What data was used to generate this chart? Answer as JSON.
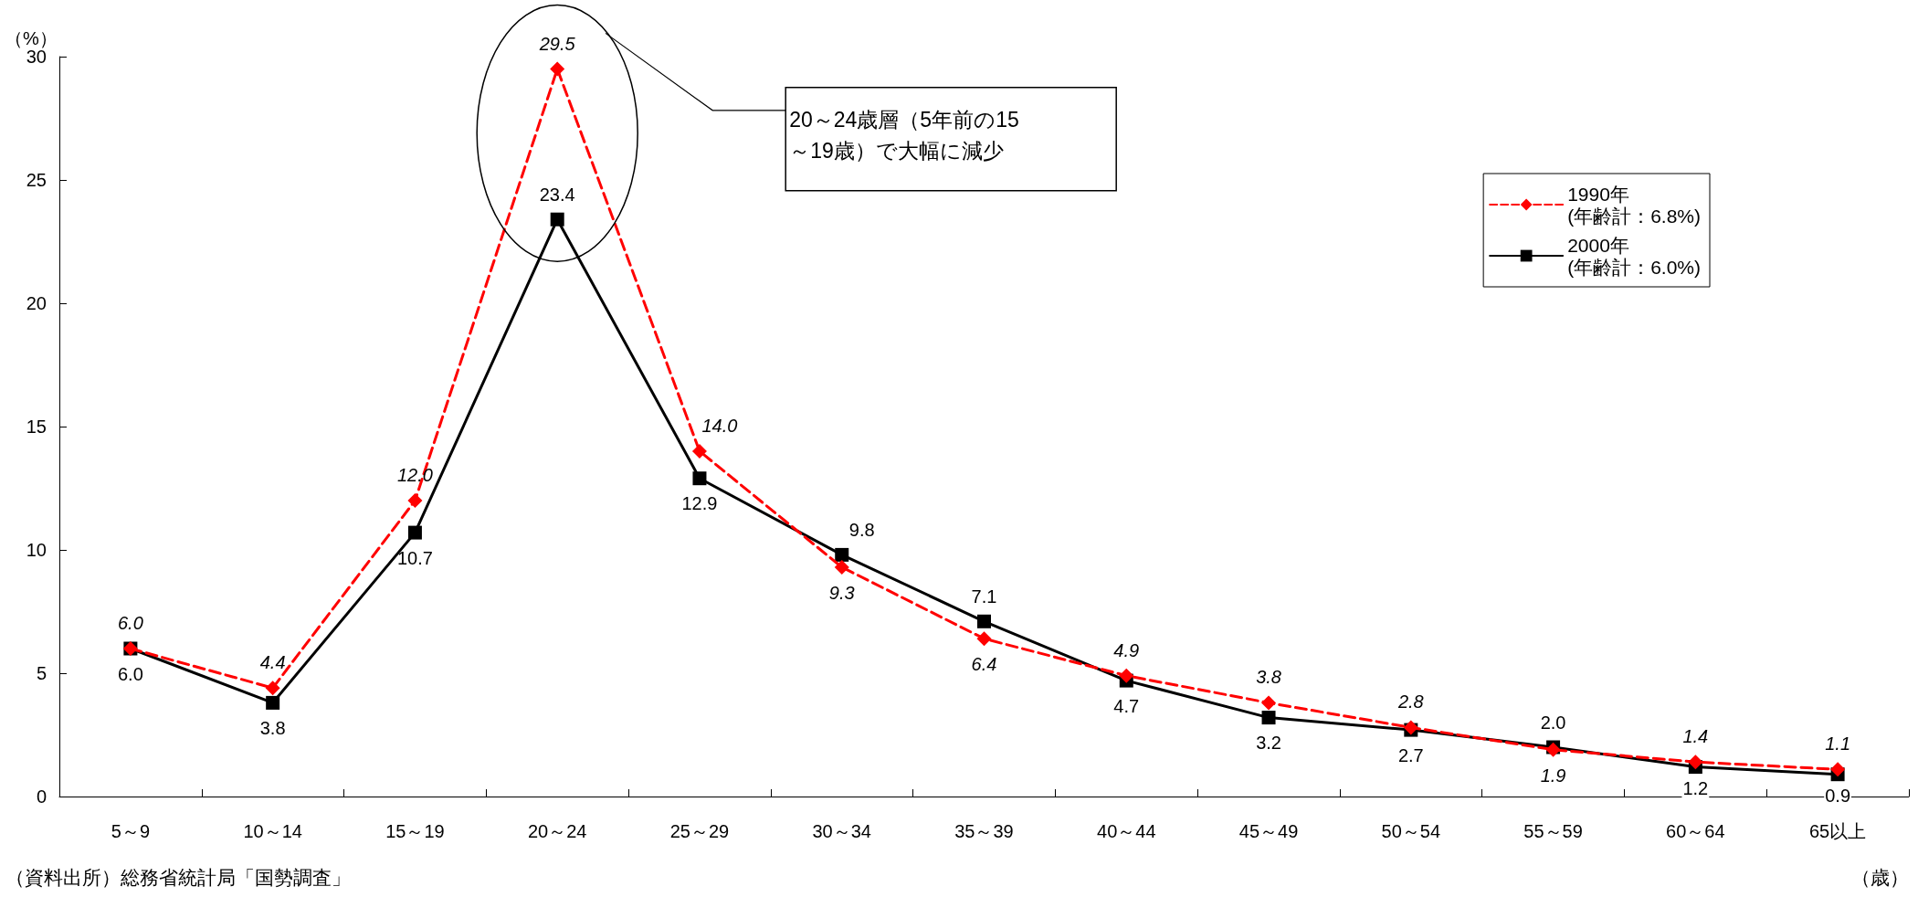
{
  "chart_data": {
    "type": "line",
    "categories": [
      "5～9",
      "10～14",
      "15～19",
      "20～24",
      "25～29",
      "30～34",
      "35～39",
      "40～44",
      "45～49",
      "50～54",
      "55～59",
      "60～64",
      "65以上"
    ],
    "series": [
      {
        "name": "1990年\n(年齢計：6.8%)",
        "color": "#ff0000",
        "marker": "diamond",
        "line_style": "dashed",
        "values": [
          6.0,
          4.4,
          12.0,
          29.5,
          14.0,
          9.3,
          6.4,
          4.9,
          3.8,
          2.8,
          1.9,
          1.4,
          1.1
        ],
        "value_labels": [
          "6.0",
          "4.4",
          "12.0",
          "29.5",
          "14.0",
          "9.3",
          "6.4",
          "4.9",
          "3.8",
          "2.8",
          "1.9",
          "1.4",
          "1.1"
        ]
      },
      {
        "name": "2000年\n(年齢計：6.0%)",
        "color": "#000000",
        "marker": "square",
        "line_style": "solid",
        "values": [
          6.0,
          3.8,
          10.7,
          23.4,
          12.9,
          9.8,
          7.1,
          4.7,
          3.2,
          2.7,
          2.0,
          1.2,
          0.9
        ],
        "value_labels": [
          "6.0",
          "3.8",
          "10.7",
          "23.4",
          "12.9",
          "9.8",
          "7.1",
          "4.7",
          "3.2",
          "2.7",
          "2.0",
          "1.2",
          "0.9"
        ]
      }
    ],
    "ylim": [
      0,
      30
    ],
    "yticks": [
      0,
      5,
      10,
      15,
      20,
      25,
      30
    ],
    "ylabel": "（%）",
    "xlabel": "（歳）",
    "legend": "top right",
    "grid": false,
    "annotations": [
      "20～24歳層（5年前の15\n～19歳）で大幅に減少",
      "（資料出所）総務省統計局「国勢調査」"
    ]
  }
}
